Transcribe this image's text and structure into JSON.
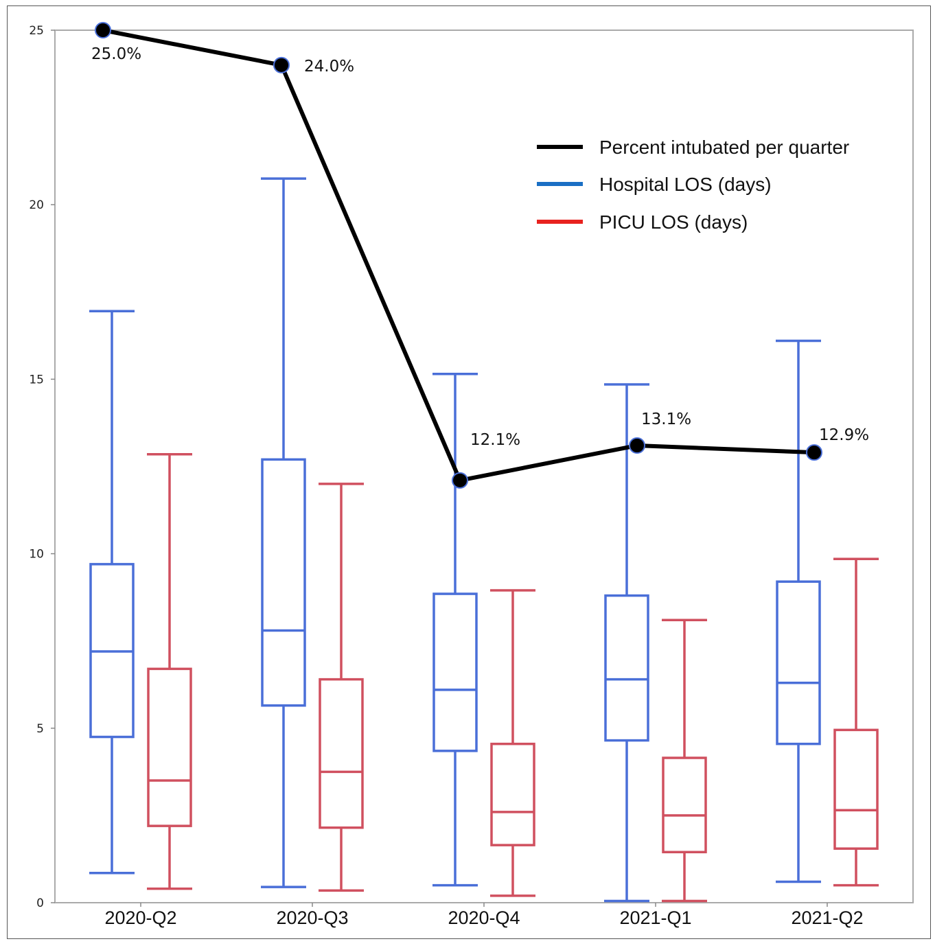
{
  "chart_data": {
    "type": "box",
    "title": "",
    "xlabel": "",
    "ylabel": "",
    "ylim": [
      0,
      25
    ],
    "yticks": [
      "0",
      "5",
      "10",
      "15",
      "20",
      "25"
    ],
    "categories": [
      "2020-Q2",
      "2020-Q3",
      "2020-Q4",
      "2021-Q1",
      "2021-Q2"
    ],
    "legend": {
      "position": "top-right",
      "entries": [
        {
          "label": "Percent intubated per quarter",
          "color": "#000000"
        },
        {
          "label": "Hospital LOS (days)",
          "color": "#1a6fc4"
        },
        {
          "label": "PICU LOS (days)",
          "color": "#e8221f"
        }
      ]
    },
    "series": [
      {
        "name": "Hospital LOS (days)",
        "color": "#4a6fd8",
        "boxes": [
          {
            "min": 0.85,
            "q1": 4.75,
            "median": 7.2,
            "q3": 9.7,
            "max": 16.95
          },
          {
            "min": 0.45,
            "q1": 5.65,
            "median": 7.8,
            "q3": 12.7,
            "max": 20.75
          },
          {
            "min": 0.5,
            "q1": 4.35,
            "median": 6.1,
            "q3": 8.85,
            "max": 15.15
          },
          {
            "min": 0.05,
            "q1": 4.65,
            "median": 6.4,
            "q3": 8.8,
            "max": 14.85
          },
          {
            "min": 0.6,
            "q1": 4.55,
            "median": 6.3,
            "q3": 9.2,
            "max": 16.1
          }
        ]
      },
      {
        "name": "PICU LOS (days)",
        "color": "#d0505f",
        "boxes": [
          {
            "min": 0.4,
            "q1": 2.2,
            "median": 3.5,
            "q3": 6.7,
            "max": 12.85
          },
          {
            "min": 0.35,
            "q1": 2.15,
            "median": 3.75,
            "q3": 6.4,
            "max": 12.0
          },
          {
            "min": 0.2,
            "q1": 1.65,
            "median": 2.6,
            "q3": 4.55,
            "max": 8.95
          },
          {
            "min": 0.05,
            "q1": 1.45,
            "median": 2.5,
            "q3": 4.15,
            "max": 8.1
          },
          {
            "min": 0.5,
            "q1": 1.55,
            "median": 2.65,
            "q3": 4.95,
            "max": 9.85
          }
        ]
      },
      {
        "name": "Percent intubated per quarter",
        "color": "#000000",
        "type": "line",
        "values": [
          25.0,
          24.0,
          12.1,
          13.1,
          12.9
        ],
        "labels": [
          "25.0%",
          "24.0%",
          "12.1%",
          "13.1%",
          "12.9%"
        ]
      }
    ],
    "grid": false
  }
}
